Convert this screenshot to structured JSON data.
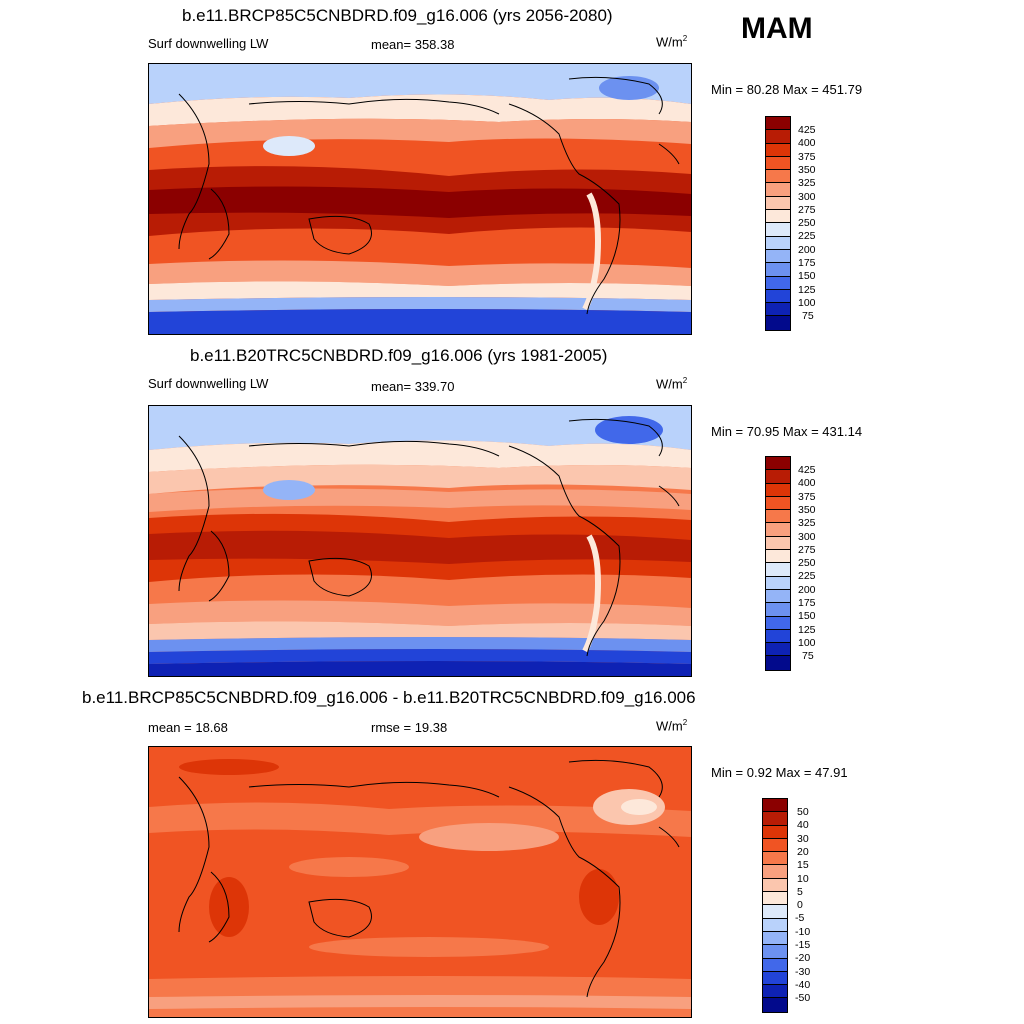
{
  "season": "MAM",
  "colors": {
    "abs_scale": [
      "#8b0000",
      "#b81c05",
      "#dd3507",
      "#f05423",
      "#f6784a",
      "#f8a07f",
      "#fbc6ae",
      "#fde8da",
      "#dde9fa",
      "#b9d2fb",
      "#94b4f7",
      "#6c91f0",
      "#4168ea",
      "#2244d8",
      "#0e22b4",
      "#020a8c"
    ],
    "diff_scale": [
      "#8b0000",
      "#b81c05",
      "#dd3507",
      "#f05423",
      "#f6784a",
      "#f8a07f",
      "#fbc6ae",
      "#fde8da",
      "#dde9fa",
      "#b9d2fb",
      "#94b4f7",
      "#6c91f0",
      "#4168ea",
      "#2244d8",
      "#0e22b4",
      "#020a8c"
    ]
  },
  "panels": [
    {
      "title": "b.e11.BRCP85C5CNBDRD.f09_g16.006 (yrs 2056-2080)",
      "left_label": "Surf downwelling LW",
      "center_label": "mean= 358.38",
      "units": "W/m",
      "units_exp": "2",
      "minmax": "Min =  80.28 Max = 451.79",
      "colorbar_labels": [
        "425",
        "400",
        "375",
        "350",
        "325",
        "300",
        "275",
        "250",
        "225",
        "200",
        "175",
        "150",
        "125",
        "100",
        "75"
      ]
    },
    {
      "title": "b.e11.B20TRC5CNBDRD.f09_g16.006 (yrs 1981-2005)",
      "left_label": "Surf downwelling LW",
      "center_label": "mean= 339.70",
      "units": "W/m",
      "units_exp": "2",
      "minmax": "Min =  70.95 Max = 431.14",
      "colorbar_labels": [
        "425",
        "400",
        "375",
        "350",
        "325",
        "300",
        "275",
        "250",
        "225",
        "200",
        "175",
        "150",
        "125",
        "100",
        "75"
      ]
    },
    {
      "title": "b.e11.BRCP85C5CNBDRD.f09_g16.006 - b.e11.B20TRC5CNBDRD.f09_g16.006",
      "left_label": "mean =  18.68",
      "center_label": "rmse =  19.38",
      "units": "W/m",
      "units_exp": "2",
      "minmax": "Min =   0.92 Max =  47.91",
      "colorbar_labels": [
        "50",
        "40",
        "30",
        "20",
        "15",
        "10",
        "5",
        "0",
        "-5",
        "-10",
        "-15",
        "-20",
        "-30",
        "-40",
        "-50"
      ]
    }
  ],
  "chart_data": [
    {
      "type": "heatmap",
      "title": "b.e11.BRCP85C5CNBDRD.f09_g16.006 (yrs 2056-2080)",
      "variable": "Surf downwelling LW",
      "mean": 358.38,
      "units": "W/m2",
      "min": 80.28,
      "max": 451.79,
      "contour_levels": [
        75,
        100,
        125,
        150,
        175,
        200,
        225,
        250,
        275,
        300,
        325,
        350,
        375,
        400,
        425
      ]
    },
    {
      "type": "heatmap",
      "title": "b.e11.B20TRC5CNBDRD.f09_g16.006 (yrs 1981-2005)",
      "variable": "Surf downwelling LW",
      "mean": 339.7,
      "units": "W/m2",
      "min": 70.95,
      "max": 431.14,
      "contour_levels": [
        75,
        100,
        125,
        150,
        175,
        200,
        225,
        250,
        275,
        300,
        325,
        350,
        375,
        400,
        425
      ]
    },
    {
      "type": "heatmap",
      "title": "b.e11.BRCP85C5CNBDRD.f09_g16.006 - b.e11.B20TRC5CNBDRD.f09_g16.006",
      "mean": 18.68,
      "rmse": 19.38,
      "units": "W/m2",
      "min": 0.92,
      "max": 47.91,
      "contour_levels": [
        -50,
        -40,
        -30,
        -20,
        -15,
        -10,
        -5,
        0,
        5,
        10,
        15,
        20,
        30,
        40,
        50
      ]
    }
  ]
}
